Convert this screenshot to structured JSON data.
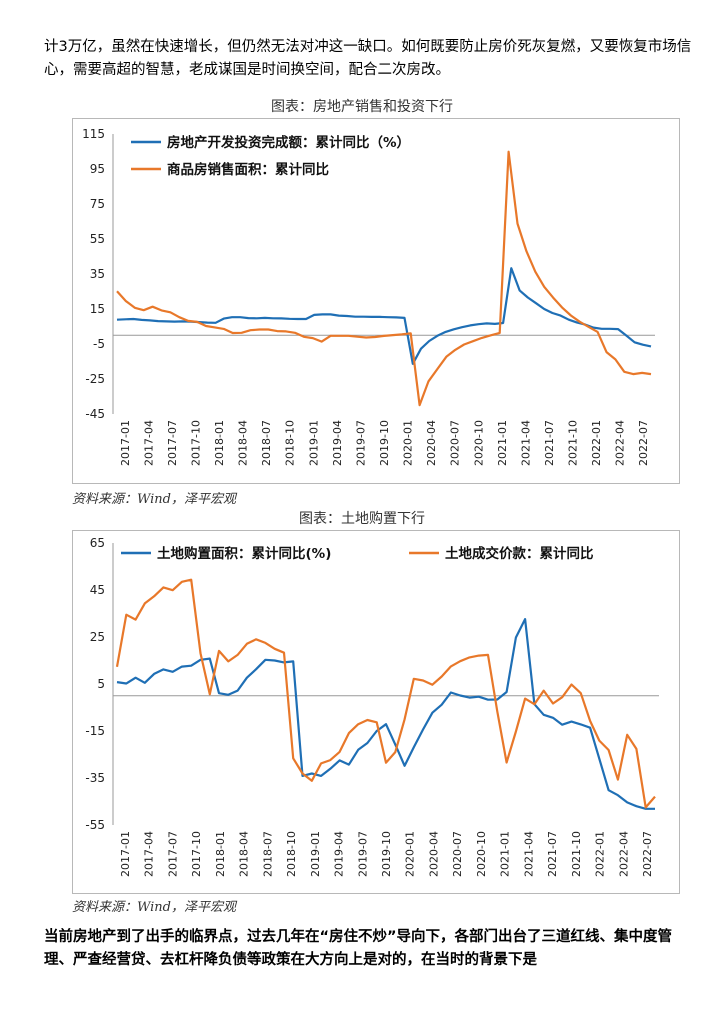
{
  "text": {
    "para1": "计3万亿，虽然在快速增长，但仍然无法对冲这一缺口。如何既要防止房价死灰复燃，又要恢复市场信心，需要高超的智慧，老成谋国是时间换空间，配合二次房改。",
    "para2": "当前房地产到了出手的临界点，过去几年在“房住不炒”导向下，各部门出台了三道红线、集中度管理、严查经营贷、去杠杆降负债等政策在大方向上是对的，在当时的背景下是",
    "source1": "资料来源：Wind，泽平宏观",
    "source2": "资料来源：Wind，泽平宏观"
  },
  "colors": {
    "blue": "#1f6fb5",
    "orange": "#e8782a"
  },
  "chart_data": [
    {
      "type": "line",
      "title": "图表：房地产销售和投资下行",
      "x_labels": [
        "2017-01",
        "2017-04",
        "2017-07",
        "2017-10",
        "2018-01",
        "2018-04",
        "2018-07",
        "2018-10",
        "2019-01",
        "2019-04",
        "2019-07",
        "2019-10",
        "2020-01",
        "2020-04",
        "2020-07",
        "2020-10",
        "2021-01",
        "2021-04",
        "2021-07",
        "2021-10",
        "2022-01",
        "2022-04",
        "2022-07"
      ],
      "yticks": [
        "115",
        "95",
        "75",
        "55",
        "35",
        "15",
        "-5",
        "-25",
        "-45"
      ],
      "ylim": [
        -45,
        115
      ],
      "series": [
        {
          "name": "房地产开发投资完成额：累计同比（%）",
          "color": "blue",
          "values": [
            8.9,
            9.1,
            9.3,
            8.8,
            8.5,
            8.1,
            7.9,
            7.8,
            7.9,
            7.8,
            7.5,
            7.2,
            7.1,
            9.5,
            10.3,
            10.3,
            9.8,
            9.7,
            9.9,
            9.7,
            9.6,
            9.4,
            9.3,
            9.3,
            11.6,
            11.9,
            11.9,
            11.2,
            11.0,
            10.6,
            10.6,
            10.5,
            10.5,
            10.3,
            10.2,
            9.9,
            -16.3,
            -7.7,
            -3.3,
            -0.3,
            1.9,
            3.4,
            4.6,
            5.6,
            6.3,
            6.8,
            6.5,
            7.0,
            38.3,
            25.6,
            21.6,
            18.3,
            15.0,
            12.7,
            11.2,
            8.9,
            7.2,
            6.1,
            4.4,
            3.7,
            3.7,
            3.5,
            -0.2,
            -4.0,
            -5.4,
            -6.4
          ]
        },
        {
          "name": "商品房销售面积：累计同比",
          "color": "orange",
          "values": [
            25.1,
            19.5,
            15.7,
            14.3,
            16.3,
            14.2,
            13.1,
            10.3,
            8.2,
            7.6,
            5.3,
            4.5,
            3.6,
            1.3,
            1.4,
            2.9,
            3.3,
            3.3,
            2.4,
            2.2,
            1.4,
            -0.9,
            -1.6,
            -3.6,
            -0.3,
            -0.3,
            -0.3,
            -0.8,
            -1.3,
            -1.0,
            -0.4,
            0.1,
            0.5,
            1.1,
            -39.9,
            -26.3,
            -19.3,
            -12.3,
            -8.4,
            -5.3,
            -3.4,
            -1.5,
            0.0,
            1.3,
            104.9,
            63.8,
            48.1,
            36.3,
            27.7,
            21.5,
            15.9,
            11.3,
            7.7,
            4.8,
            1.9,
            -9.6,
            -13.8,
            -20.9,
            -22.2,
            -21.5,
            -22.2
          ]
        }
      ]
    },
    {
      "type": "line",
      "title": "图表：土地购置下行",
      "x_labels": [
        "2017-01",
        "2017-04",
        "2017-07",
        "2017-10",
        "2018-01",
        "2018-04",
        "2018-07",
        "2018-10",
        "2019-01",
        "2019-04",
        "2019-07",
        "2019-10",
        "2020-01",
        "2020-04",
        "2020-07",
        "2020-10",
        "2021-01",
        "2021-04",
        "2021-07",
        "2021-10",
        "2022-01",
        "2022-04",
        "2022-07"
      ],
      "yticks": [
        "65",
        "45",
        "25",
        "5",
        "-15",
        "-35",
        "-55"
      ],
      "ylim": [
        -55,
        65
      ],
      "series": [
        {
          "name": "土地购置面积：累计同比(%)",
          "color": "blue",
          "values": [
            5.8,
            5.2,
            7.7,
            5.5,
            9.3,
            11.2,
            10.2,
            12.4,
            12.8,
            15.3,
            15.8,
            1.1,
            0.4,
            2.2,
            7.7,
            11.3,
            15.3,
            15.0,
            14.2,
            14.6,
            -34.1,
            -33.1,
            -34.1,
            -31.1,
            -27.5,
            -29.3,
            -23.0,
            -20.1,
            -15.0,
            -12.1,
            -20.8,
            -29.8,
            -21.9,
            -14.3,
            -7.2,
            -3.8,
            1.4,
            0.1,
            -0.8,
            -0.4,
            -1.7,
            -1.6,
            1.6,
            24.8,
            32.6,
            -3.6,
            -8.1,
            -9.4,
            -12.3,
            -11.0,
            -12.2,
            -13.6,
            -26.8,
            -40.2,
            -42.3,
            -45.4,
            -47.0,
            -48.1,
            -48.1
          ]
        },
        {
          "name": "土地成交价款：累计同比",
          "color": "orange",
          "values": [
            12.3,
            34.5,
            32.4,
            39.3,
            42.3,
            46.1,
            44.9,
            48.5,
            49.4,
            18.1,
            0.6,
            19.1,
            14.6,
            17.4,
            22.1,
            24.0,
            22.5,
            20.0,
            18.3,
            -26.6,
            -33.1,
            -36.2,
            -28.8,
            -27.4,
            -23.9,
            -15.9,
            -12.1,
            -10.3,
            -11.3,
            -28.5,
            -24.0,
            -10.0,
            7.2,
            6.5,
            4.7,
            8.2,
            12.5,
            14.7,
            16.3,
            17.1,
            17.4,
            -6.7,
            -28.4,
            -15.2,
            -1.2,
            -3.6,
            2.2,
            -3.3,
            -0.6,
            4.8,
            1.1,
            -10.7,
            -19.1,
            -23.1,
            -35.7,
            -16.6,
            -22.6,
            -47.5,
            -42.9
          ]
        }
      ]
    }
  ]
}
